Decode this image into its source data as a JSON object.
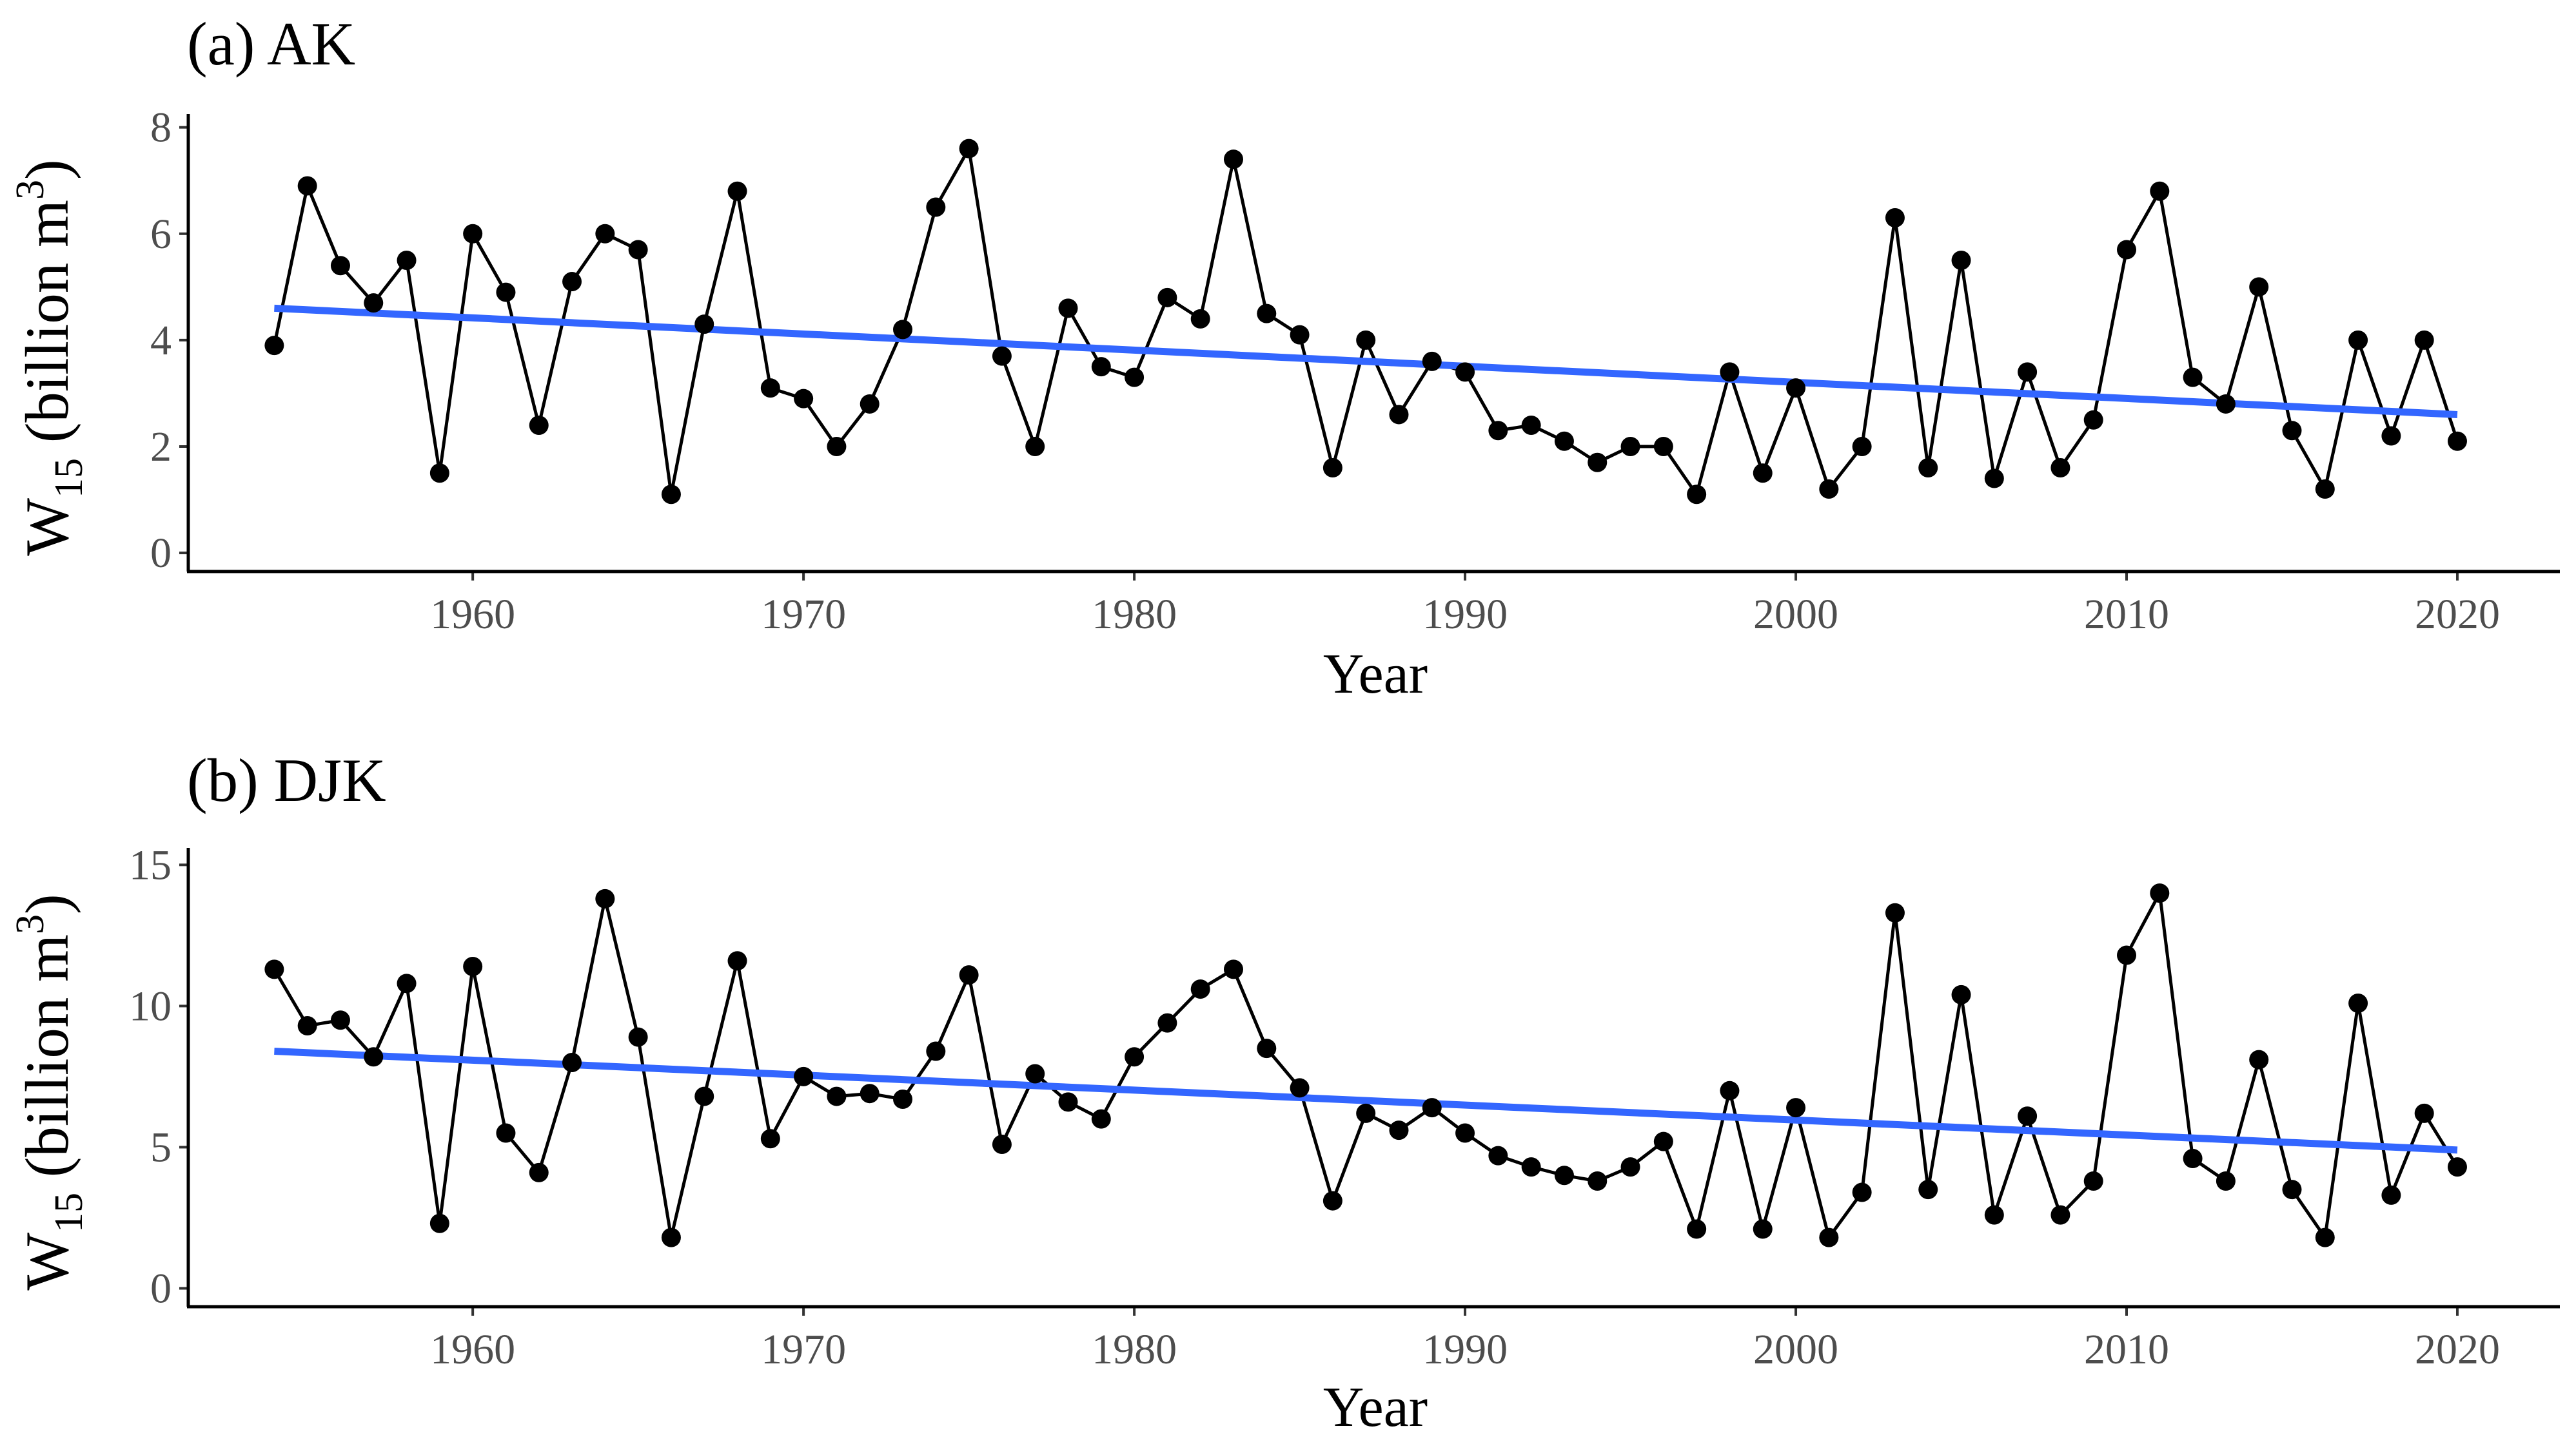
{
  "colors": {
    "trend": "#3366ff",
    "series": "#000000",
    "tick_text": "#4d4d4d"
  },
  "chart_data": [
    {
      "type": "line",
      "title": "(a) AK",
      "xlabel": "Year",
      "ylabel": {
        "main": "W",
        "sub": "15",
        "rest": " (billion m",
        "sup": "3",
        "close": ")"
      },
      "xlim": [
        1951.4,
        2023.1
      ],
      "ylim": [
        -0.35,
        8.25
      ],
      "xticks": [
        1960,
        1970,
        1980,
        1990,
        2000,
        2010,
        2020
      ],
      "yticks": [
        0,
        2,
        4,
        6,
        8
      ],
      "x": [
        1954,
        1955,
        1956,
        1957,
        1958,
        1959,
        1960,
        1961,
        1962,
        1963,
        1964,
        1965,
        1966,
        1967,
        1968,
        1969,
        1970,
        1971,
        1972,
        1973,
        1974,
        1975,
        1976,
        1977,
        1978,
        1979,
        1980,
        1981,
        1982,
        1983,
        1984,
        1985,
        1986,
        1987,
        1988,
        1989,
        1990,
        1991,
        1992,
        1993,
        1994,
        1995,
        1996,
        1997,
        1998,
        1999,
        2000,
        2001,
        2002,
        2003,
        2004,
        2005,
        2006,
        2007,
        2008,
        2009,
        2010,
        2011,
        2012,
        2013,
        2014,
        2015,
        2016,
        2017,
        2018,
        2019,
        2020
      ],
      "values": [
        3.9,
        6.9,
        5.4,
        4.7,
        5.5,
        1.5,
        6.0,
        4.9,
        2.4,
        5.1,
        6.0,
        5.7,
        1.1,
        4.3,
        6.8,
        3.1,
        2.9,
        2.0,
        2.8,
        4.2,
        6.5,
        7.6,
        3.7,
        2.0,
        4.6,
        3.5,
        3.3,
        4.8,
        4.4,
        7.4,
        4.5,
        4.1,
        1.6,
        4.0,
        2.6,
        3.6,
        3.4,
        2.3,
        2.4,
        2.1,
        1.7,
        2.0,
        2.0,
        1.1,
        3.4,
        1.5,
        3.1,
        1.2,
        2.0,
        6.3,
        1.6,
        5.5,
        1.4,
        3.4,
        1.6,
        2.5,
        5.7,
        6.8,
        3.3,
        2.8,
        5.0,
        2.3,
        1.2,
        4.0,
        2.2,
        4.0,
        2.1
      ],
      "trend": {
        "x": [
          1954,
          2020
        ],
        "y": [
          4.6,
          2.6
        ]
      }
    },
    {
      "type": "line",
      "title": "(b) DJK",
      "xlabel": "Year",
      "ylabel": {
        "main": "W",
        "sub": "15",
        "rest": " (billion m",
        "sup": "3",
        "close": ")"
      },
      "xlim": [
        1951.4,
        2023.1
      ],
      "ylim": [
        -0.65,
        15.6
      ],
      "xticks": [
        1960,
        1970,
        1980,
        1990,
        2000,
        2010,
        2020
      ],
      "yticks": [
        0,
        5,
        10,
        15
      ],
      "x": [
        1954,
        1955,
        1956,
        1957,
        1958,
        1959,
        1960,
        1961,
        1962,
        1963,
        1964,
        1965,
        1966,
        1967,
        1968,
        1969,
        1970,
        1971,
        1972,
        1973,
        1974,
        1975,
        1976,
        1977,
        1978,
        1979,
        1980,
        1981,
        1982,
        1983,
        1984,
        1985,
        1986,
        1987,
        1988,
        1989,
        1990,
        1991,
        1992,
        1993,
        1994,
        1995,
        1996,
        1997,
        1998,
        1999,
        2000,
        2001,
        2002,
        2003,
        2004,
        2005,
        2006,
        2007,
        2008,
        2009,
        2010,
        2011,
        2012,
        2013,
        2014,
        2015,
        2016,
        2017,
        2018,
        2019,
        2020
      ],
      "values": [
        11.3,
        9.3,
        9.5,
        8.2,
        10.8,
        2.3,
        11.4,
        5.5,
        4.1,
        8.0,
        13.8,
        8.9,
        1.8,
        6.8,
        11.6,
        5.3,
        7.5,
        6.8,
        6.9,
        6.7,
        8.4,
        11.1,
        5.1,
        7.6,
        6.6,
        6.0,
        8.2,
        9.4,
        10.6,
        11.3,
        8.5,
        7.1,
        3.1,
        6.2,
        5.6,
        6.4,
        5.5,
        4.7,
        4.3,
        4.0,
        3.8,
        4.3,
        5.2,
        2.1,
        7.0,
        2.1,
        6.4,
        1.8,
        3.4,
        13.3,
        3.5,
        10.4,
        2.6,
        6.1,
        2.6,
        3.8,
        11.8,
        14.0,
        4.6,
        3.8,
        8.1,
        3.5,
        1.8,
        10.1,
        3.3,
        6.2,
        4.3
      ],
      "trend": {
        "x": [
          1954,
          2020
        ],
        "y": [
          8.4,
          4.9
        ]
      }
    }
  ]
}
